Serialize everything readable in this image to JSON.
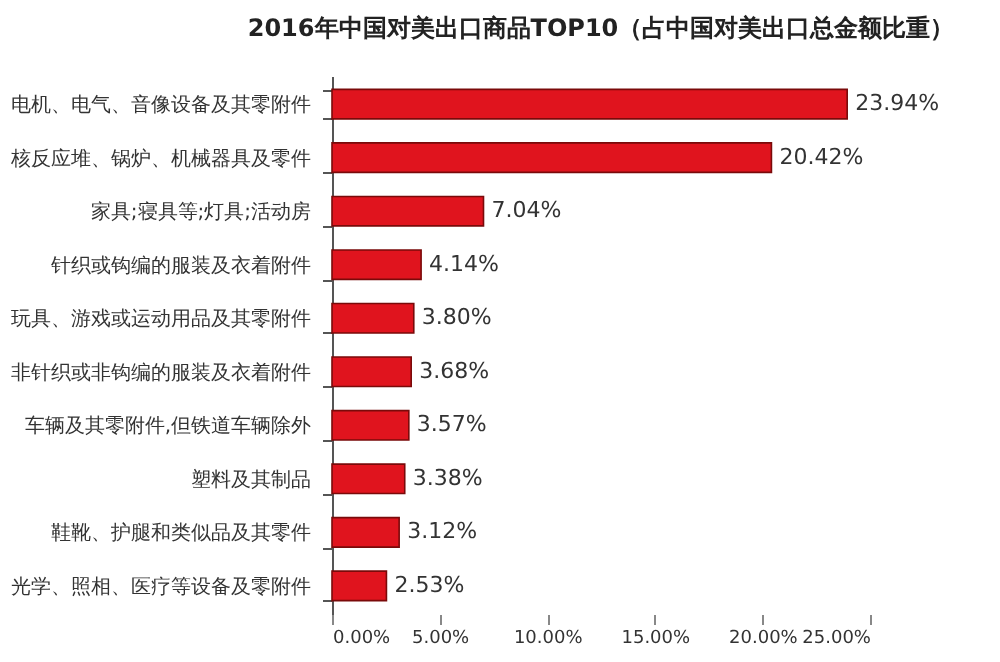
{
  "chart_data": {
    "type": "bar",
    "orientation": "horizontal",
    "title": "2016年中国对美出口商品TOP10（占中国对美出口总金额比重）",
    "categories": [
      "电机、电气、音像设备及其零附件",
      "核反应堆、锅炉、机械器具及零件",
      "家具;寝具等;灯具;活动房",
      "针织或钩编的服装及衣着附件",
      "玩具、游戏或运动用品及其零附件",
      "非针织或非钩编的服装及衣着附件",
      "车辆及其零附件,但铁道车辆除外",
      "塑料及其制品",
      "鞋靴、护腿和类似品及其零件",
      "光学、照相、医疗等设备及零附件"
    ],
    "values": [
      23.94,
      20.42,
      7.04,
      4.14,
      3.8,
      3.68,
      3.57,
      3.38,
      3.12,
      2.53
    ],
    "value_labels": [
      "23.94%",
      "20.42%",
      "7.04%",
      "4.14%",
      "3.80%",
      "3.68%",
      "3.57%",
      "3.38%",
      "3.12%",
      "2.53%"
    ],
    "color": "#e0141e",
    "xlim": [
      0,
      25
    ],
    "xticks": [
      {
        "value": 0,
        "label": "0.00%"
      },
      {
        "value": 5,
        "label": "5.00%"
      },
      {
        "value": 10,
        "label": "10.00%"
      },
      {
        "value": 15,
        "label": "15.00%"
      },
      {
        "value": 20,
        "label": "20.00%"
      },
      {
        "value": 25,
        "label": "25.00%"
      }
    ],
    "grid": false
  }
}
